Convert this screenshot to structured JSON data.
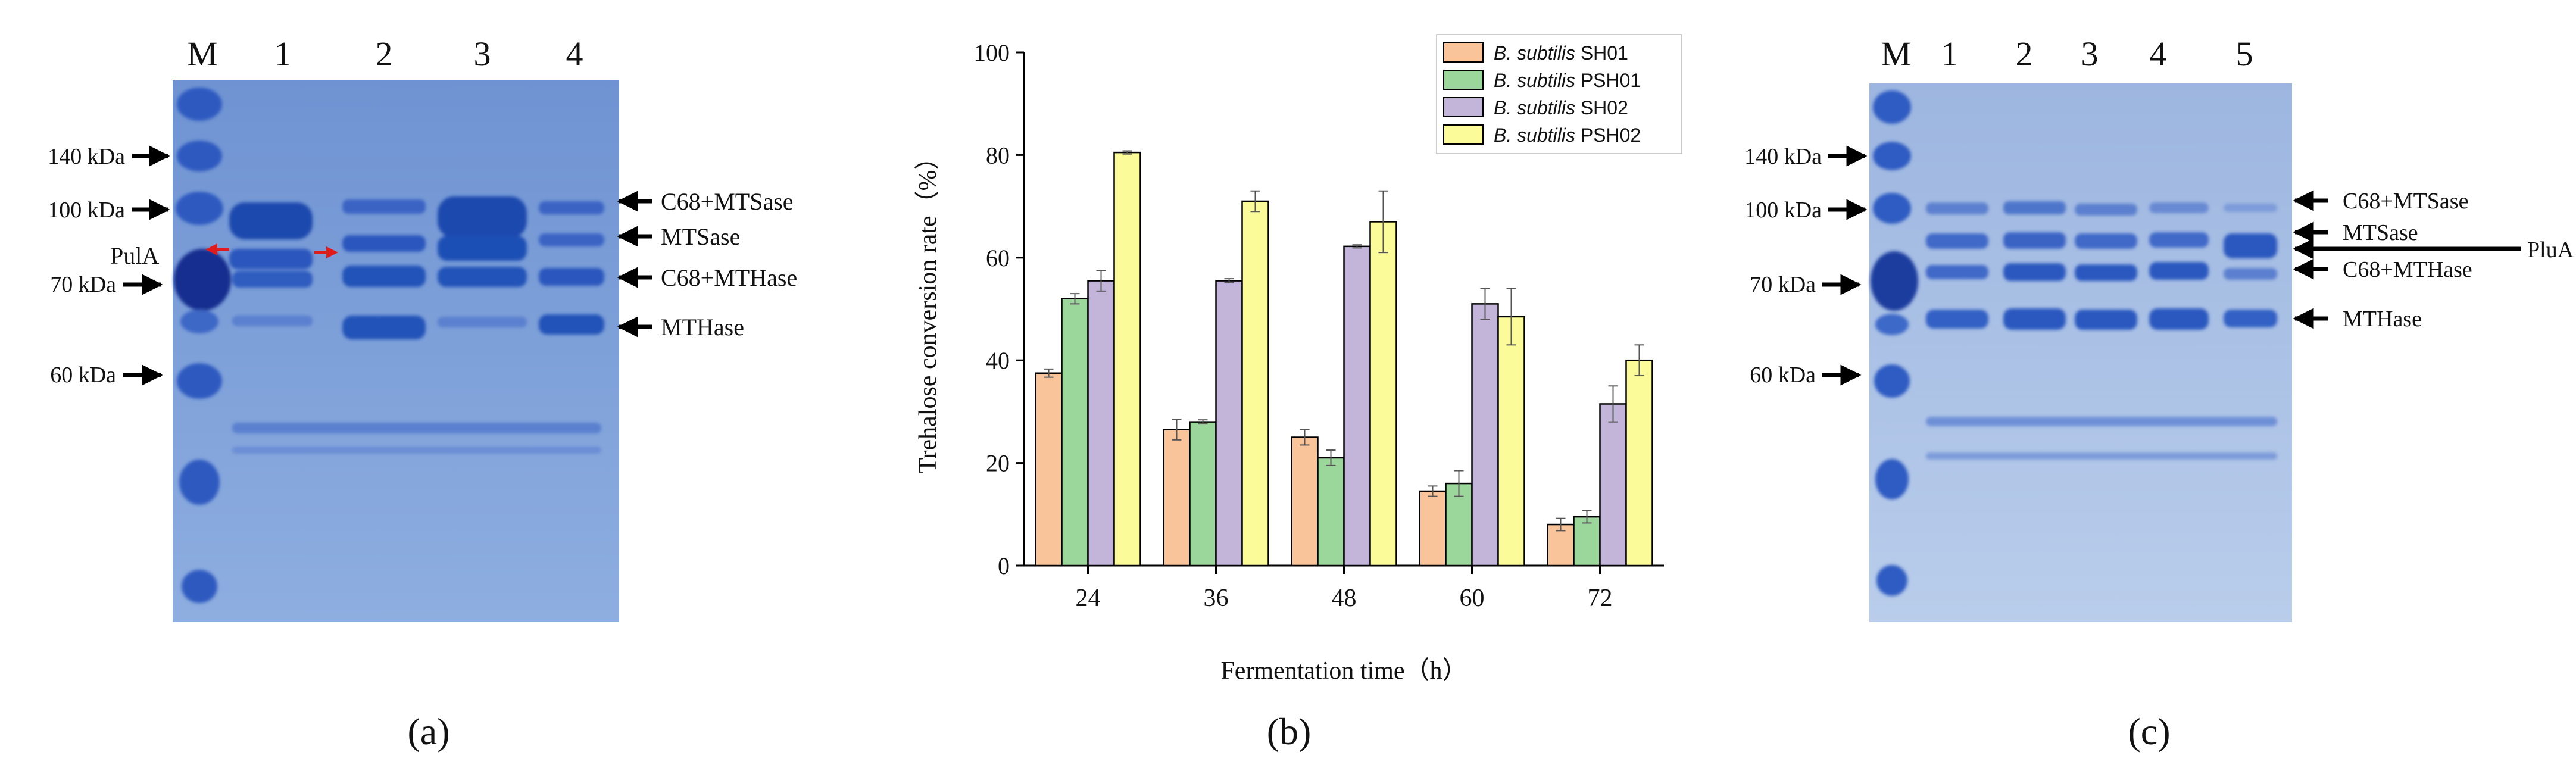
{
  "panel_a": {
    "caption": "(a)",
    "lanes": [
      "M",
      "1",
      "2",
      "3",
      "4"
    ],
    "markers": [
      "140 kDa",
      "100 kDa",
      "70 kDa",
      "60 kDa"
    ],
    "left_label": "PulA",
    "right_labels": [
      "C68+MTSase",
      "MTSase",
      "C68+MTHase",
      "MTHase"
    ],
    "colors": {
      "gel": "#7d9fd6",
      "band": "#1f4fb0",
      "pointer": "#e01b1b"
    }
  },
  "panel_b": {
    "caption": "(b)",
    "chart_data": {
      "type": "bar",
      "title": "",
      "xlabel": "Fermentation time（h）",
      "ylabel": "Trehalose conversion rate（%）",
      "ylim": [
        0,
        100
      ],
      "yticks": [
        "0",
        "20",
        "40",
        "60",
        "80",
        "100"
      ],
      "categories": [
        "24",
        "36",
        "48",
        "60",
        "72"
      ],
      "legend_position": "top-right",
      "series": [
        {
          "name_italic": "B. subtilis",
          "name_rest": " SH01",
          "color": "#f9c49a",
          "values": [
            37.5,
            26.5,
            25.0,
            14.5,
            8.0
          ],
          "errors": [
            0.8,
            2.0,
            1.5,
            1.0,
            1.2
          ]
        },
        {
          "name_italic": "B. subtilis",
          "name_rest": " PSH01",
          "color": "#9bd79b",
          "values": [
            52.0,
            28.0,
            21.0,
            16.0,
            9.5
          ],
          "errors": [
            1.0,
            0.4,
            1.5,
            2.5,
            1.2
          ]
        },
        {
          "name_italic": "B. subtilis",
          "name_rest": " SH02",
          "color": "#c3b4da",
          "values": [
            55.5,
            55.5,
            62.2,
            51.0,
            31.5
          ],
          "errors": [
            2.0,
            0.4,
            0.3,
            3.0,
            3.5
          ]
        },
        {
          "name_italic": "B. subtilis",
          "name_rest": " PSH02",
          "color": "#fbfb9a",
          "values": [
            80.5,
            71.0,
            67.0,
            48.5,
            40.0
          ],
          "errors": [
            0.3,
            2.0,
            6.0,
            5.5,
            3.0
          ]
        }
      ]
    }
  },
  "panel_c": {
    "caption": "(c)",
    "lanes": [
      "M",
      "1",
      "2",
      "3",
      "4",
      "5"
    ],
    "markers": [
      "140 kDa",
      "100 kDa",
      "70 kDa",
      "60 kDa"
    ],
    "right_labels": [
      "C68+MTSase",
      "MTSase",
      "PluA",
      "C68+MTHase",
      "MTHase"
    ],
    "colors": {
      "gel": "#a8bfe3",
      "band": "#3c66c2"
    }
  }
}
